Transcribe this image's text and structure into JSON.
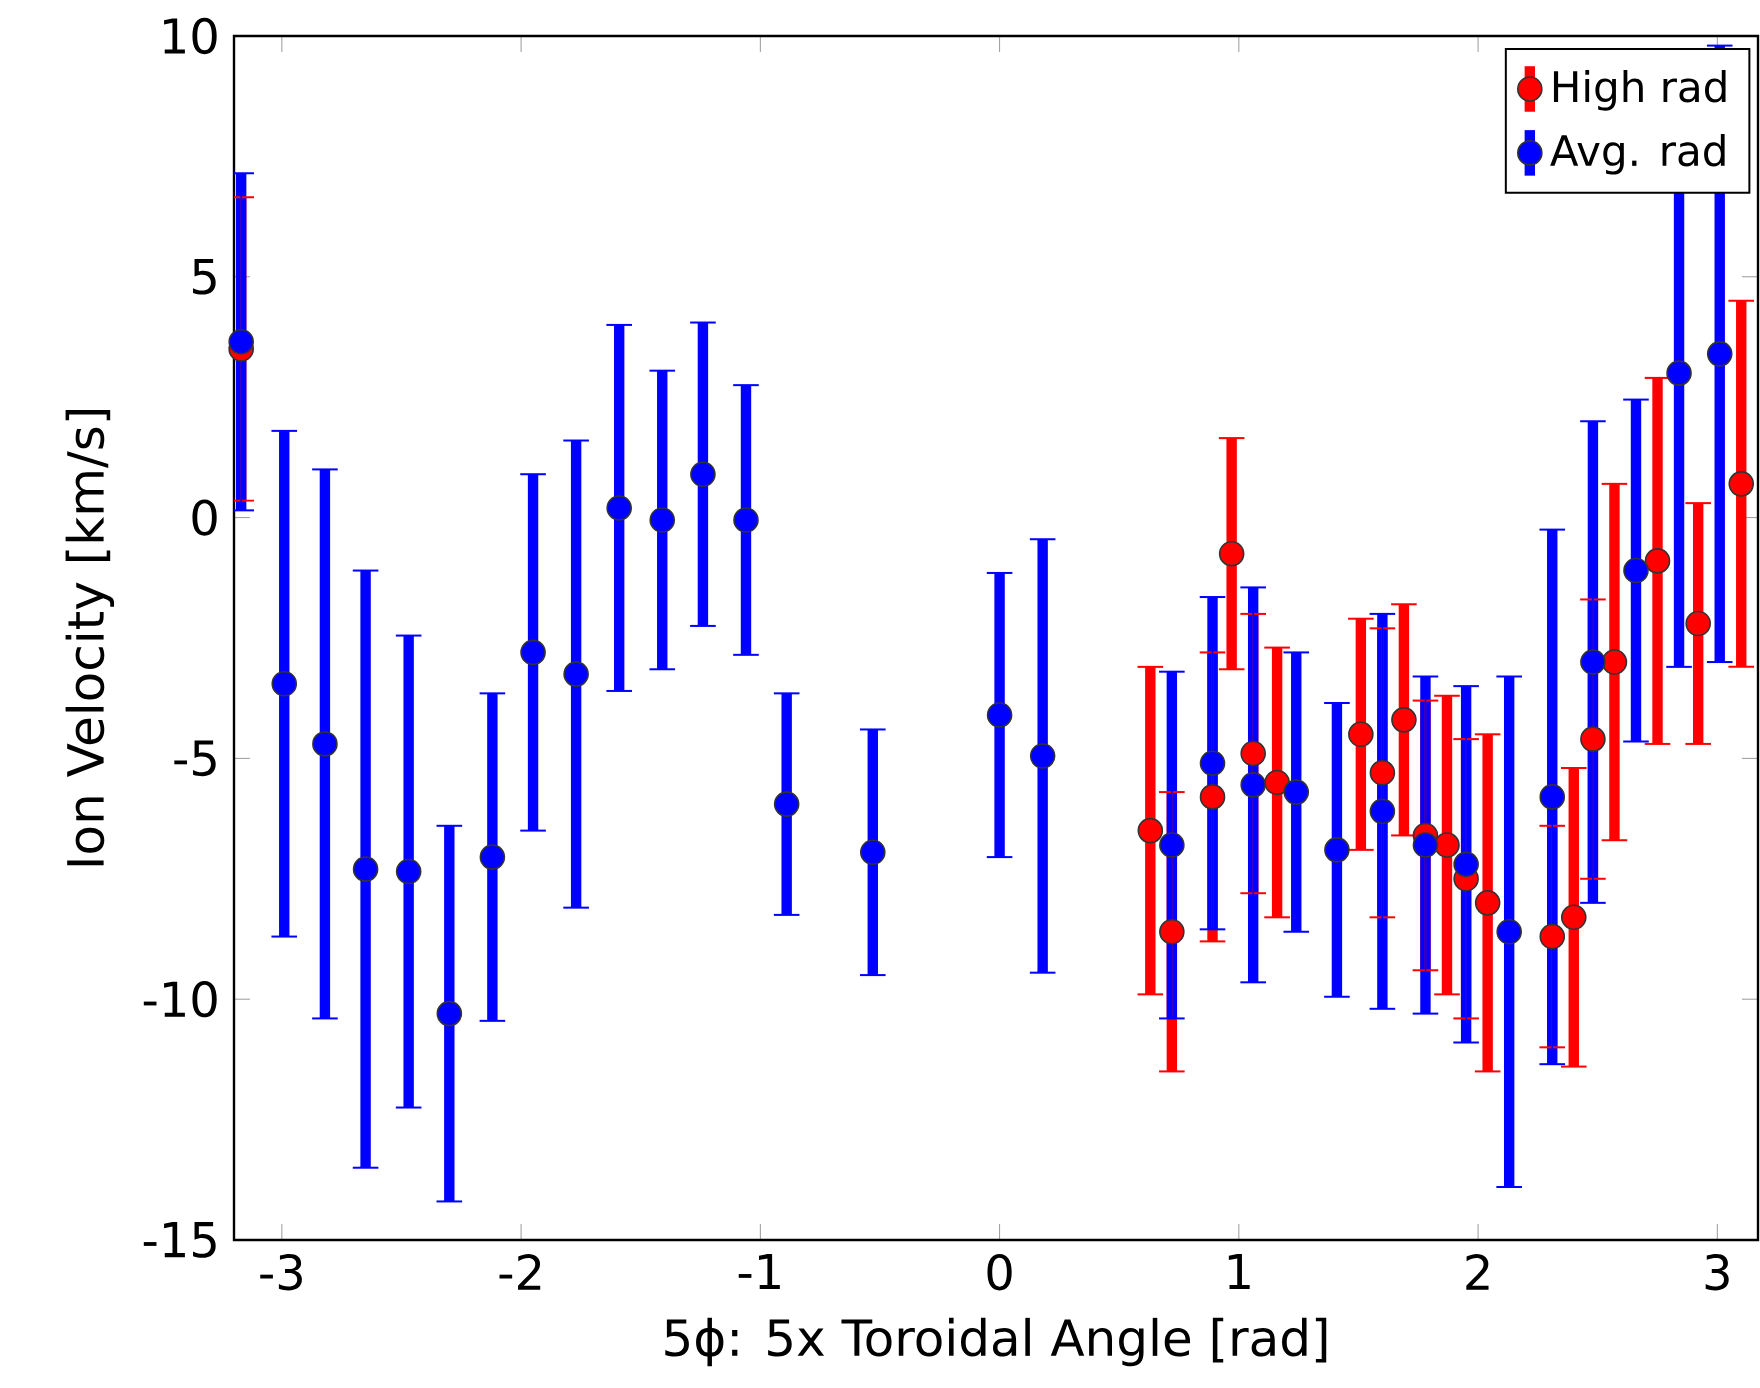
{
  "chart_data": {
    "type": "scatter",
    "xlabel": "5ϕ: 5x Toroidal Angle [rad]",
    "ylabel": "Ion Velocity [km/s]",
    "xlim": [
      -3.2,
      3.17
    ],
    "ylim": [
      -15,
      10
    ],
    "xticks": [
      -3,
      -2,
      -1,
      0,
      1,
      2,
      3
    ],
    "yticks": [
      -15,
      -10,
      -5,
      0,
      5,
      10
    ],
    "grid": false,
    "legend": "top right",
    "marker": "circle",
    "series": [
      {
        "name": "High rad",
        "color": "#ff0000",
        "x": [
          -3.17,
          0.63,
          0.72,
          0.89,
          0.97,
          1.06,
          1.16,
          1.51,
          1.6,
          1.69,
          1.78,
          1.87,
          1.95,
          2.04,
          2.31,
          2.4,
          2.48,
          2.57,
          2.75,
          2.92,
          3.1
        ],
        "values": [
          3.5,
          -6.5,
          -8.6,
          -5.8,
          -0.75,
          -4.9,
          -5.5,
          -4.5,
          -5.3,
          -4.2,
          -6.6,
          -6.8,
          -7.5,
          -8.0,
          -8.7,
          -8.3,
          -4.6,
          -3.0,
          -0.9,
          -2.2,
          0.7
        ],
        "errors": [
          3.15,
          3.4,
          2.9,
          3.0,
          2.4,
          2.9,
          2.8,
          2.4,
          3.0,
          2.4,
          2.8,
          3.1,
          2.9,
          3.5,
          2.3,
          3.1,
          2.9,
          3.7,
          3.8,
          2.5,
          3.8
        ]
      },
      {
        "name": "Avg. rad",
        "color": "#0000ff",
        "x": [
          -3.17,
          -2.99,
          -2.82,
          -2.65,
          -2.47,
          -2.3,
          -2.12,
          -1.95,
          -1.77,
          -1.59,
          -1.41,
          -1.24,
          -1.06,
          -0.89,
          -0.53,
          0.0,
          0.18,
          0.72,
          0.89,
          1.06,
          1.24,
          1.41,
          1.6,
          1.78,
          1.95,
          2.13,
          2.31,
          2.48,
          2.66,
          2.84,
          3.01
        ],
        "values": [
          3.65,
          -3.45,
          -4.7,
          -7.3,
          -7.35,
          -10.3,
          -7.05,
          -2.8,
          -3.25,
          0.2,
          -0.05,
          0.9,
          -0.05,
          -5.95,
          -6.95,
          -4.1,
          -4.95,
          -6.8,
          -5.1,
          -5.55,
          -5.7,
          -6.9,
          -6.1,
          -6.8,
          -7.2,
          -8.6,
          -5.8,
          -3.0,
          -1.1,
          3.0,
          3.4
        ],
        "errors": [
          3.5,
          5.25,
          5.7,
          6.2,
          4.9,
          3.9,
          3.4,
          3.7,
          4.85,
          3.8,
          3.1,
          3.15,
          2.8,
          2.3,
          2.55,
          2.95,
          4.5,
          3.6,
          3.45,
          4.1,
          2.9,
          3.05,
          4.1,
          3.5,
          3.7,
          5.3,
          5.55,
          5.0,
          3.55,
          6.1,
          6.4
        ]
      }
    ]
  }
}
